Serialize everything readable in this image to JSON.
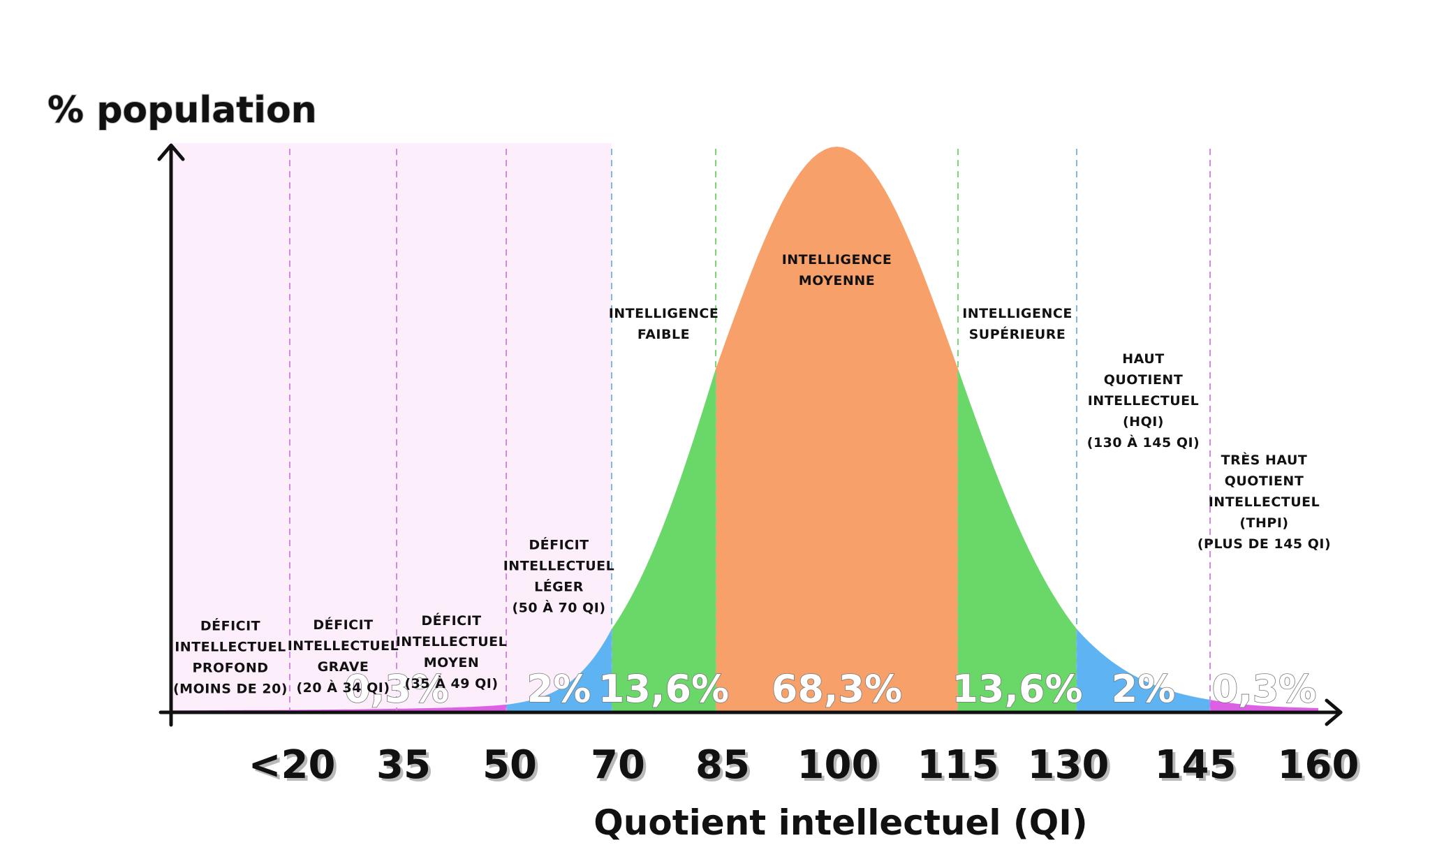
{
  "chart_data": {
    "type": "area",
    "title": "",
    "ylabel": "% population",
    "xlabel": "Quotient intellectuel (QI)",
    "x_tick_labels": [
      "<20",
      "35",
      "50",
      "70",
      "85",
      "100",
      "115",
      "130",
      "145",
      "160"
    ],
    "distribution": {
      "mean": 100,
      "sd": 15
    },
    "xlim": [
      10,
      160
    ],
    "bands": [
      {
        "from": 10,
        "to": 20,
        "label": [
          "DÉFICIT",
          "INTELLECTUEL",
          "PROFOND",
          "(MOINS DE 20)"
        ],
        "color": "#dd5fe6",
        "background": "#fdeefb",
        "divider": "#d08ae0"
      },
      {
        "from": 20,
        "to": 35,
        "label": [
          "DÉFICIT",
          "INTELLECTUEL",
          "GRAVE",
          "(20 À 34 QI)"
        ],
        "color": "#dd5fe6",
        "background": "#fdeefb",
        "divider": "#d08ae0"
      },
      {
        "from": 35,
        "to": 50,
        "label": [
          "DÉFICIT",
          "INTELLECTUEL",
          "MOYEN",
          "(35 À 49 QI)"
        ],
        "color": "#dd5fe6",
        "background": "#fdeefb",
        "divider": "#d08ae0"
      },
      {
        "from": 50,
        "to": 70,
        "label": [
          "DÉFICIT",
          "INTELLECTUEL",
          "LÉGER",
          "(50 À 70 QI)"
        ],
        "color": "#5eb4f3",
        "background": "#fdeefb",
        "divider": "#7cb9ea"
      },
      {
        "from": 70,
        "to": 85,
        "label": [
          "INTELLIGENCE",
          "FAIBLE"
        ],
        "color": "#69d868",
        "background": "#ffffff",
        "divider": "#78d878"
      },
      {
        "from": 85,
        "to": 115,
        "label": [
          "INTELLIGENCE",
          "MOYENNE"
        ],
        "color": "#f8a06a",
        "background": "#ffffff",
        "divider": "#78d878"
      },
      {
        "from": 115,
        "to": 130,
        "label": [
          "INTELLIGENCE",
          "SUPÉRIEURE"
        ],
        "color": "#69d868",
        "background": "#ffffff",
        "divider": "#7cb9ea"
      },
      {
        "from": 130,
        "to": 145,
        "label": [
          "HAUT",
          "QUOTIENT",
          "INTELLECTUEL",
          "(HQI)",
          "(130 À 145 QI)"
        ],
        "color": "#5eb4f3",
        "background": "#ffffff",
        "divider": "#d08ae0"
      },
      {
        "from": 145,
        "to": 160,
        "label": [
          "TRÈS HAUT",
          "QUOTIENT",
          "INTELLECTUEL",
          "(THPI)",
          "(PLUS DE 145 QI)"
        ],
        "color": "#dd5fe6",
        "background": "#ffffff",
        "divider": null
      }
    ],
    "percentages": [
      {
        "label": "0,3%",
        "at": 35
      },
      {
        "label": "2%",
        "at": 60
      },
      {
        "label": "13,6%",
        "at": 77.5
      },
      {
        "label": "68,3%",
        "at": 100
      },
      {
        "label": "13,6%",
        "at": 122.5
      },
      {
        "label": "2%",
        "at": 137.5
      },
      {
        "label": "0,3%",
        "at": 152.5
      }
    ]
  }
}
